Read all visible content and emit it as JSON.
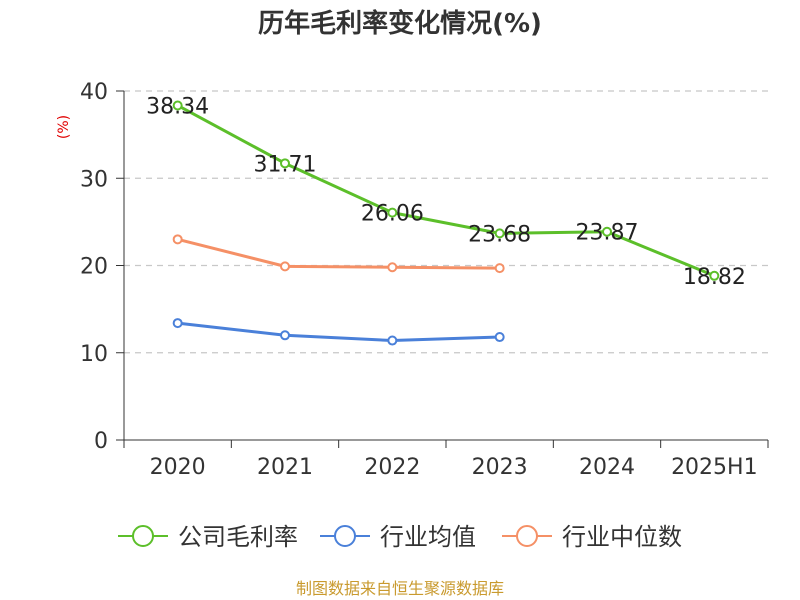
{
  "colors": {
    "company": "#5cbf2a",
    "industry_avg": "#4a80d9",
    "industry_median": "#f59066",
    "grid": "#c8c8c8",
    "axis": "#333333",
    "source": "#c99a2e",
    "ylabel": "#e00000"
  },
  "chart_data": {
    "type": "line",
    "title": "历年毛利率变化情况(%)",
    "ylabel": "(%)",
    "xlabel": "",
    "ylim": [
      0,
      40
    ],
    "yticks": [
      0,
      10,
      20,
      30,
      40
    ],
    "grid": true,
    "legend_position": "bottom",
    "categories": [
      "2020",
      "2021",
      "2022",
      "2023",
      "2024",
      "2025H1"
    ],
    "series": [
      {
        "name": "公司毛利率",
        "values": [
          38.34,
          31.71,
          26.06,
          23.68,
          23.87,
          18.82
        ],
        "labels": [
          "38.34",
          "31.71",
          "26.06",
          "23.68",
          "23.87",
          "18.82"
        ]
      },
      {
        "name": "行业均值",
        "values": [
          13.4,
          12.0,
          11.4,
          11.8,
          null,
          null
        ]
      },
      {
        "name": "行业中位数",
        "values": [
          23.0,
          19.9,
          19.8,
          19.7,
          null,
          null
        ]
      }
    ]
  },
  "source": "制图数据来自恒生聚源数据库"
}
